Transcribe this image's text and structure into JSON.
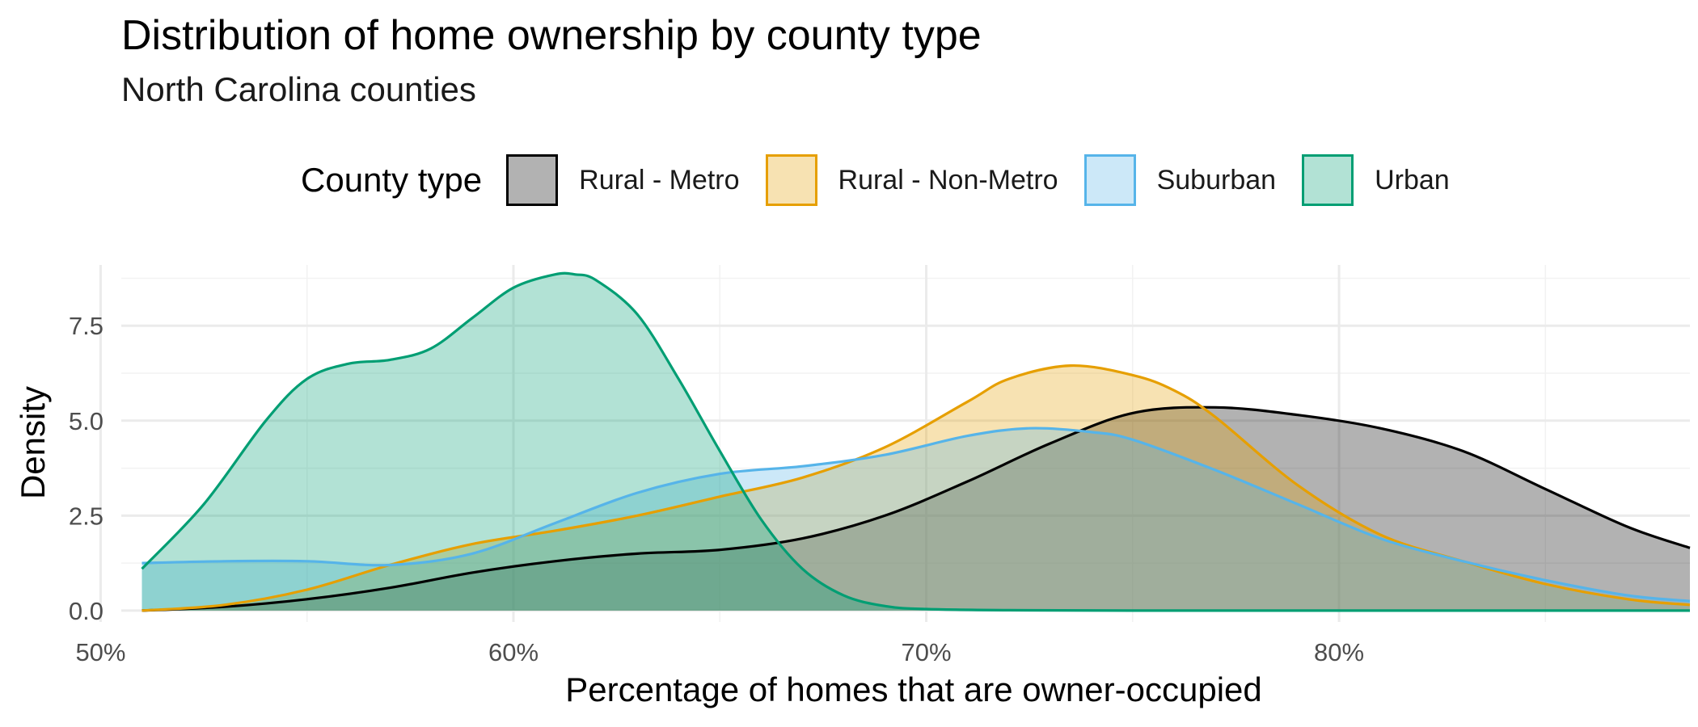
{
  "chart_data": {
    "type": "area",
    "title": "Distribution of home ownership by county type",
    "subtitle": "North Carolina counties",
    "xlabel": "Percentage of homes that are owner-occupied",
    "ylabel": "Density",
    "xlim": [
      0.505,
      0.885
    ],
    "ylim": [
      -0.3,
      9.1
    ],
    "x_ticks": [
      0.5,
      0.6,
      0.7,
      0.8
    ],
    "x_tick_labels": [
      "50%",
      "60%",
      "70%",
      "80%"
    ],
    "y_ticks": [
      0,
      2.5,
      5,
      7.5
    ],
    "y_tick_labels": [
      "0.0",
      "2.5",
      "5.0",
      "7.5"
    ],
    "grid": true,
    "legend": {
      "title": "County type",
      "placement": "top"
    },
    "series": [
      {
        "name": "Rural - Metro",
        "color": "#000000",
        "fill": "#000000",
        "fill_opacity": 0.3,
        "x": [
          0.51,
          0.53,
          0.55,
          0.57,
          0.59,
          0.61,
          0.63,
          0.65,
          0.67,
          0.69,
          0.71,
          0.73,
          0.75,
          0.77,
          0.79,
          0.81,
          0.83,
          0.85,
          0.87,
          0.885
        ],
        "y": [
          0.0,
          0.1,
          0.3,
          0.6,
          1.0,
          1.3,
          1.5,
          1.6,
          1.9,
          2.5,
          3.4,
          4.4,
          5.2,
          5.35,
          5.15,
          4.8,
          4.2,
          3.2,
          2.2,
          1.65
        ]
      },
      {
        "name": "Rural - Non-Metro",
        "color": "#E69F00",
        "fill": "#E69F00",
        "fill_opacity": 0.3,
        "x": [
          0.51,
          0.53,
          0.55,
          0.57,
          0.59,
          0.61,
          0.63,
          0.65,
          0.67,
          0.69,
          0.71,
          0.72,
          0.735,
          0.75,
          0.76,
          0.77,
          0.79,
          0.81,
          0.83,
          0.85,
          0.87,
          0.885
        ],
        "y": [
          0.0,
          0.15,
          0.55,
          1.2,
          1.75,
          2.1,
          2.5,
          3.0,
          3.5,
          4.3,
          5.5,
          6.1,
          6.45,
          6.2,
          5.8,
          5.1,
          3.3,
          2.0,
          1.3,
          0.7,
          0.3,
          0.15
        ]
      },
      {
        "name": "Suburban",
        "color": "#56B4E9",
        "fill": "#56B4E9",
        "fill_opacity": 0.3,
        "x": [
          0.51,
          0.53,
          0.55,
          0.57,
          0.59,
          0.61,
          0.63,
          0.65,
          0.67,
          0.69,
          0.71,
          0.725,
          0.74,
          0.75,
          0.77,
          0.79,
          0.81,
          0.83,
          0.85,
          0.87,
          0.885
        ],
        "y": [
          1.25,
          1.3,
          1.3,
          1.2,
          1.5,
          2.3,
          3.1,
          3.6,
          3.8,
          4.1,
          4.6,
          4.8,
          4.7,
          4.5,
          3.7,
          2.8,
          1.9,
          1.3,
          0.8,
          0.4,
          0.25
        ]
      },
      {
        "name": "Urban",
        "color": "#009E73",
        "fill": "#009E73",
        "fill_opacity": 0.3,
        "x": [
          0.51,
          0.525,
          0.54,
          0.55,
          0.56,
          0.57,
          0.58,
          0.59,
          0.6,
          0.61,
          0.615,
          0.62,
          0.63,
          0.64,
          0.65,
          0.66,
          0.67,
          0.68,
          0.69,
          0.7,
          0.72,
          0.75,
          0.8,
          0.885
        ],
        "y": [
          1.1,
          2.8,
          5.0,
          6.1,
          6.5,
          6.6,
          6.9,
          7.7,
          8.5,
          8.85,
          8.85,
          8.7,
          7.8,
          6.1,
          4.2,
          2.4,
          1.1,
          0.4,
          0.12,
          0.04,
          0.01,
          0.0,
          0.0,
          0.0
        ]
      }
    ]
  }
}
